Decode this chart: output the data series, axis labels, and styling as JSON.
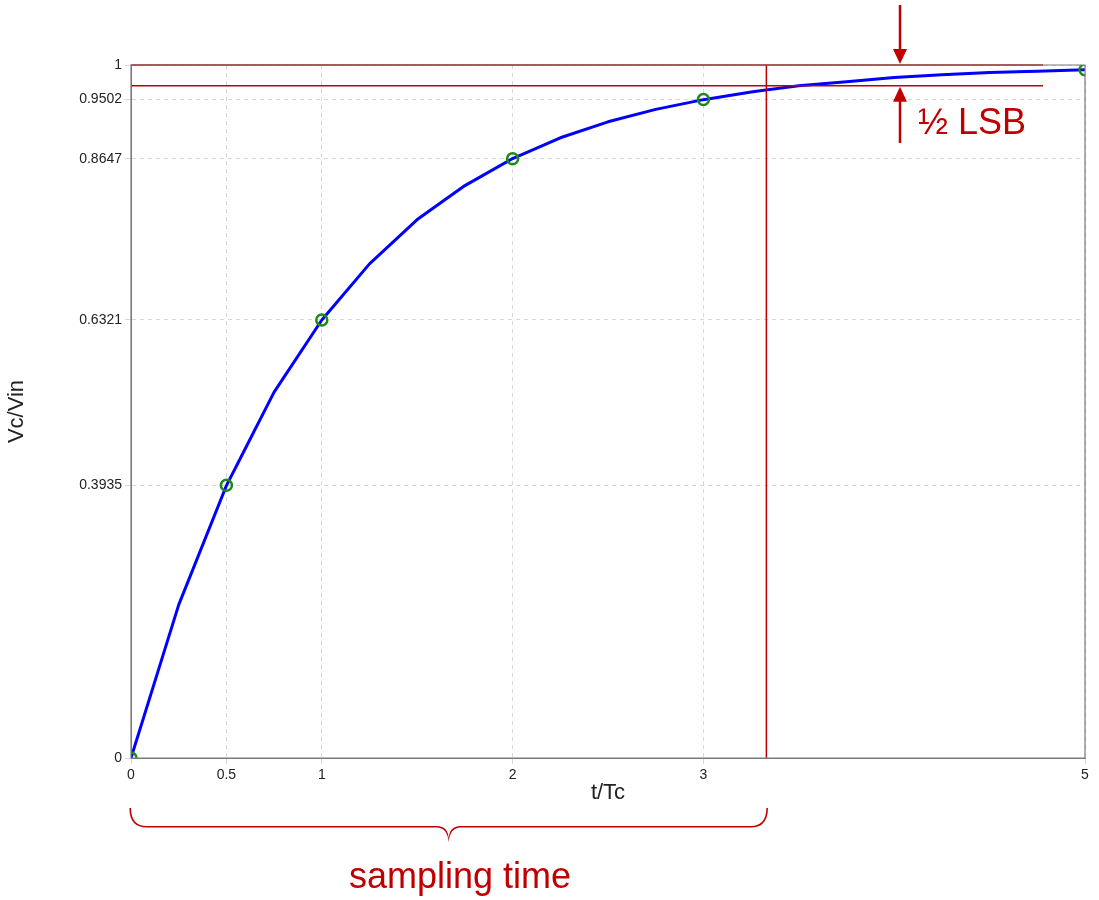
{
  "chart_data": {
    "type": "line",
    "xlabel": "t/Tc",
    "ylabel": "Vc/Vin",
    "xlim": [
      0,
      5
    ],
    "ylim": [
      0,
      1
    ],
    "xticks": [
      0,
      0.5,
      1,
      2,
      3,
      5
    ],
    "yticks": [
      0,
      0.3935,
      0.6321,
      0.8647,
      0.9502,
      1
    ],
    "grid": true,
    "legend": false,
    "series": [
      {
        "type": "line",
        "color": "#0000ff",
        "marker": "none",
        "line_style": "solid",
        "x": [
          0,
          0.25,
          0.5,
          0.75,
          1,
          1.25,
          1.5,
          1.75,
          2,
          2.25,
          2.5,
          2.75,
          3,
          3.25,
          3.5,
          3.75,
          4,
          4.25,
          4.5,
          4.75,
          5
        ],
        "values": [
          0,
          0.221,
          0.393,
          0.528,
          0.632,
          0.713,
          0.777,
          0.826,
          0.865,
          0.895,
          0.918,
          0.936,
          0.95,
          0.961,
          0.97,
          0.976,
          0.982,
          0.986,
          0.989,
          0.991,
          0.993
        ]
      },
      {
        "type": "scatter",
        "color": "#1a8a1a",
        "marker": "circle",
        "x": [
          0,
          0.5,
          1,
          2,
          3,
          5
        ],
        "values": [
          0,
          0.3935,
          0.6321,
          0.8647,
          0.9502,
          0.993
        ]
      }
    ],
    "ref_lines": [
      {
        "axis": "y",
        "value": 1,
        "color": "#c00000",
        "line_style": "solid"
      },
      {
        "axis": "y",
        "value": 0.97,
        "color": "#c00000",
        "line_style": "solid"
      },
      {
        "axis": "x",
        "value": 3.33,
        "color": "#c00000",
        "line_style": "solid"
      }
    ],
    "annotations": [
      "½ LSB",
      "sampling time"
    ]
  }
}
